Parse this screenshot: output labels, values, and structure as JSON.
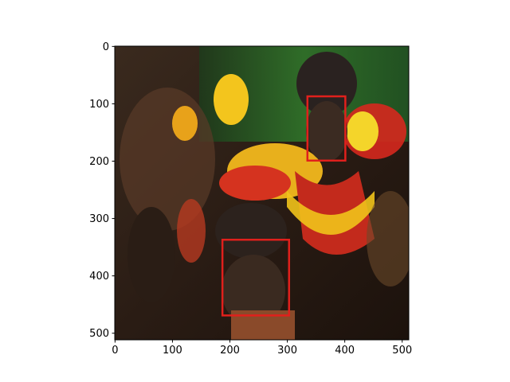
{
  "chart_data": {
    "type": "image",
    "xlim": [
      -0.5,
      511.5
    ],
    "ylim": [
      511.5,
      -0.5
    ],
    "xticks": [
      0,
      100,
      200,
      300,
      400,
      500
    ],
    "yticks": [
      0,
      100,
      200,
      300,
      400,
      500
    ],
    "box_color": "#e0201c",
    "boxes": [
      [
        335,
        87,
        401,
        199
      ],
      [
        187,
        337,
        303,
        469
      ]
    ]
  }
}
